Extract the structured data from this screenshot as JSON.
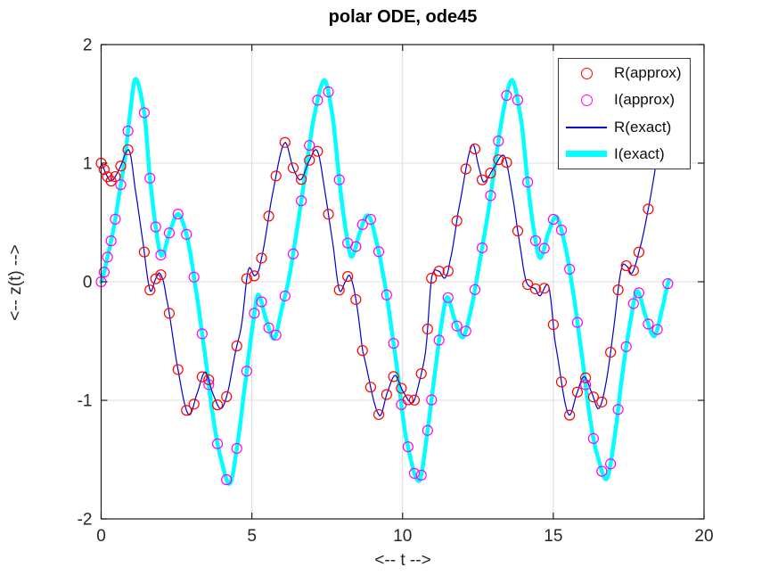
{
  "chart_data": {
    "type": "line+scatter",
    "title": "polar ODE, ode45",
    "xlabel": "<-- t -->",
    "ylabel": "<-- z(t) -->",
    "xlim": [
      0,
      20
    ],
    "ylim": [
      -2,
      2
    ],
    "xticks": [
      0,
      5,
      10,
      15,
      20
    ],
    "yticks": [
      -2,
      -1,
      0,
      1,
      2
    ],
    "grid": true,
    "colors": {
      "r_approx": "#ff0000",
      "i_approx": "#ff00ff",
      "r_exact": "#0000cc",
      "i_exact": "#00ffff",
      "grid_line": "#dcdcdc",
      "axis_box": "#1a1a1a",
      "tick_text": "#262626"
    },
    "marker_times": [
      0,
      0.1,
      0.21,
      0.33,
      0.47,
      0.65,
      0.89,
      1.43,
      1.62,
      1.81,
      1.98,
      2.26,
      2.55,
      2.83,
      3.08,
      3.35,
      3.57,
      3.86,
      4.16,
      4.5,
      4.83,
      5.08,
      5.32,
      5.56,
      5.8,
      6.1,
      6.37,
      6.64,
      6.91,
      7.18,
      7.54,
      7.9,
      8.18,
      8.45,
      8.67,
      8.94,
      9.21,
      9.47,
      9.7,
      9.96,
      10.18,
      10.39,
      10.62,
      10.83,
      10.96,
      11.21,
      11.51,
      11.8,
      12.1,
      12.4,
      12.64,
      12.92,
      13.18,
      13.45,
      13.82,
      14.15,
      14.41,
      14.7,
      15.0,
      15.27,
      15.54,
      15.8,
      16.07,
      16.33,
      16.61,
      16.9,
      17.15,
      17.42,
      17.66,
      17.84,
      18.15,
      18.45,
      18.8
    ],
    "series": [
      {
        "name": "R(approx)",
        "kind": "scatter",
        "marker": "circle",
        "color": "#ff0000",
        "follows": "R(exact)"
      },
      {
        "name": "I(approx)",
        "kind": "scatter",
        "marker": "circle",
        "color": "#ff00ff",
        "follows": "I(exact)"
      },
      {
        "name": "R(exact)",
        "kind": "line",
        "color": "#0000cc",
        "line_width": 1.2,
        "knots": [
          [
            0,
            1.0
          ],
          [
            0.18,
            0.9
          ],
          [
            0.34,
            0.85
          ],
          [
            0.6,
            0.95
          ],
          [
            0.93,
            1.11
          ],
          [
            1.13,
            0.78
          ],
          [
            1.39,
            0.33
          ],
          [
            1.62,
            -0.07
          ],
          [
            1.8,
            0.02
          ],
          [
            1.95,
            0.07
          ],
          [
            2.15,
            -0.12
          ],
          [
            2.55,
            -0.74
          ],
          [
            2.9,
            -1.12
          ],
          [
            3.2,
            -0.93
          ],
          [
            3.45,
            -0.76
          ],
          [
            3.7,
            -0.94
          ],
          [
            3.97,
            -1.07
          ],
          [
            4.2,
            -0.93
          ],
          [
            4.45,
            -0.6
          ],
          [
            4.66,
            -0.36
          ],
          [
            4.88,
            0.1
          ],
          [
            5.1,
            0.05
          ],
          [
            5.3,
            0.18
          ],
          [
            5.67,
            0.72
          ],
          [
            6.08,
            1.17
          ],
          [
            6.37,
            0.96
          ],
          [
            6.62,
            0.86
          ],
          [
            6.9,
            1.02
          ],
          [
            7.18,
            1.1
          ],
          [
            7.45,
            0.72
          ],
          [
            7.7,
            0.3
          ],
          [
            7.9,
            -0.07
          ],
          [
            8.1,
            0.0
          ],
          [
            8.25,
            0.05
          ],
          [
            8.45,
            -0.15
          ],
          [
            8.67,
            -0.58
          ],
          [
            9.21,
            -1.12
          ],
          [
            9.5,
            -0.93
          ],
          [
            9.75,
            -0.79
          ],
          [
            10.0,
            -0.92
          ],
          [
            10.34,
            -1.02
          ],
          [
            10.6,
            -0.8
          ],
          [
            10.78,
            -0.55
          ],
          [
            10.96,
            0.03
          ],
          [
            11.2,
            0.09
          ],
          [
            11.4,
            0.03
          ],
          [
            11.56,
            0.16
          ],
          [
            11.85,
            0.6
          ],
          [
            12.3,
            1.15
          ],
          [
            12.55,
            0.95
          ],
          [
            12.69,
            0.84
          ],
          [
            13.0,
            0.95
          ],
          [
            13.38,
            1.06
          ],
          [
            13.65,
            0.72
          ],
          [
            13.9,
            0.3
          ],
          [
            14.1,
            0.0
          ],
          [
            14.41,
            -0.06
          ],
          [
            14.55,
            -0.12
          ],
          [
            14.85,
            -0.04
          ],
          [
            15.05,
            -0.5
          ],
          [
            15.49,
            -1.11
          ],
          [
            15.8,
            -0.93
          ],
          [
            16.02,
            -0.8
          ],
          [
            16.3,
            -0.95
          ],
          [
            16.51,
            -1.07
          ],
          [
            16.75,
            -0.85
          ],
          [
            17.0,
            -0.4
          ],
          [
            17.25,
            0.1
          ],
          [
            17.45,
            0.13
          ],
          [
            17.6,
            0.07
          ],
          [
            17.84,
            0.25
          ],
          [
            18.1,
            0.55
          ],
          [
            18.41,
            1.0
          ],
          [
            18.85,
            1.55
          ]
        ]
      },
      {
        "name": "I(exact)",
        "kind": "line",
        "color": "#00ffff",
        "line_width": 4.5,
        "knots": [
          [
            0,
            0.0
          ],
          [
            0.3,
            0.3
          ],
          [
            0.45,
            0.5
          ],
          [
            0.64,
            0.8
          ],
          [
            0.78,
            1.02
          ],
          [
            0.9,
            1.3
          ],
          [
            1.13,
            1.71
          ],
          [
            1.45,
            1.4
          ],
          [
            1.6,
            0.92
          ],
          [
            1.8,
            0.48
          ],
          [
            2.0,
            0.22
          ],
          [
            2.3,
            0.44
          ],
          [
            2.56,
            0.57
          ],
          [
            2.85,
            0.38
          ],
          [
            3.1,
            0.0
          ],
          [
            3.45,
            -0.62
          ],
          [
            3.75,
            -1.2
          ],
          [
            4.0,
            -1.52
          ],
          [
            4.28,
            -1.7
          ],
          [
            4.55,
            -1.32
          ],
          [
            4.8,
            -0.82
          ],
          [
            5.0,
            -0.42
          ],
          [
            5.2,
            -0.11
          ],
          [
            5.45,
            -0.3
          ],
          [
            5.74,
            -0.48
          ],
          [
            6.0,
            -0.22
          ],
          [
            6.22,
            0.02
          ],
          [
            6.5,
            0.45
          ],
          [
            6.8,
            0.95
          ],
          [
            7.05,
            1.38
          ],
          [
            7.41,
            1.7
          ],
          [
            7.7,
            1.36
          ],
          [
            7.9,
            0.86
          ],
          [
            8.1,
            0.46
          ],
          [
            8.3,
            0.21
          ],
          [
            8.6,
            0.43
          ],
          [
            8.85,
            0.56
          ],
          [
            9.1,
            0.37
          ],
          [
            9.45,
            -0.08
          ],
          [
            9.8,
            -0.7
          ],
          [
            10.1,
            -1.3
          ],
          [
            10.55,
            -1.68
          ],
          [
            10.85,
            -1.22
          ],
          [
            11.1,
            -0.72
          ],
          [
            11.3,
            -0.34
          ],
          [
            11.48,
            -0.13
          ],
          [
            11.7,
            -0.3
          ],
          [
            12.0,
            -0.47
          ],
          [
            12.3,
            -0.2
          ],
          [
            12.55,
            0.16
          ],
          [
            12.85,
            0.6
          ],
          [
            13.1,
            1.05
          ],
          [
            13.35,
            1.45
          ],
          [
            13.64,
            1.7
          ],
          [
            13.95,
            1.34
          ],
          [
            14.15,
            0.84
          ],
          [
            14.35,
            0.44
          ],
          [
            14.56,
            0.2
          ],
          [
            14.85,
            0.42
          ],
          [
            15.1,
            0.55
          ],
          [
            15.35,
            0.35
          ],
          [
            15.6,
            0.0
          ],
          [
            15.95,
            -0.62
          ],
          [
            16.25,
            -1.2
          ],
          [
            16.5,
            -1.5
          ],
          [
            16.78,
            -1.66
          ],
          [
            17.05,
            -1.28
          ],
          [
            17.3,
            -0.76
          ],
          [
            17.55,
            -0.35
          ],
          [
            17.78,
            -0.08
          ],
          [
            18.05,
            -0.28
          ],
          [
            18.35,
            -0.46
          ],
          [
            18.6,
            -0.24
          ],
          [
            18.85,
            0.02
          ]
        ]
      }
    ]
  },
  "legend": {
    "position": "top-right",
    "entries": [
      {
        "label": "R(approx)",
        "swatch": "circle",
        "color": "#ff0000"
      },
      {
        "label": "I(approx)",
        "swatch": "circle",
        "color": "#ff00ff"
      },
      {
        "label": "R(exact)",
        "swatch": "line-thin",
        "color": "#0000cc"
      },
      {
        "label": "I(exact)",
        "swatch": "line-thick",
        "color": "#00ffff"
      }
    ]
  }
}
